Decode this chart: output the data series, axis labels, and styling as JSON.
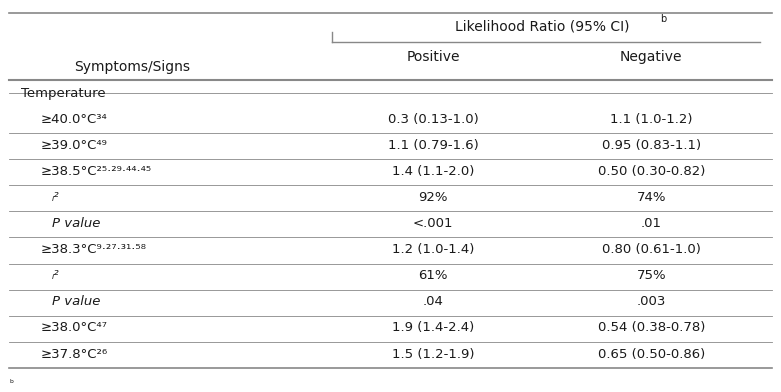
{
  "title": "Likelihood Ratio (95% CI)ᵇ",
  "col_headers": [
    "Symptoms/Signs",
    "Positive",
    "Negative"
  ],
  "rows": [
    {
      "label": "Temperature",
      "positive": "",
      "negative": "",
      "indent": 0,
      "bold": false,
      "italic": false,
      "divider_above": true
    },
    {
      "label": "≥40.0°C³⁴",
      "positive": "0.3 (0.13-1.0)",
      "negative": "1.1 (1.0-1.2)",
      "indent": 1,
      "bold": false,
      "italic": false,
      "divider_above": false
    },
    {
      "label": "≥39.0°C⁴⁹",
      "positive": "1.1 (0.79-1.6)",
      "negative": "0.95 (0.83-1.1)",
      "indent": 1,
      "bold": false,
      "italic": false,
      "divider_above": true
    },
    {
      "label": "≥38.5°C²⁵‧²⁹‧⁴⁴‧⁴⁵",
      "positive": "1.4 (1.1-2.0)",
      "negative": "0.50 (0.30-0.82)",
      "indent": 1,
      "bold": false,
      "italic": false,
      "divider_above": true
    },
    {
      "label": "    ᵢ²",
      "positive": "92%",
      "negative": "74%",
      "indent": 2,
      "bold": false,
      "italic": true,
      "divider_above": true
    },
    {
      "label": "    P value",
      "positive": "<.001",
      "negative": ".01",
      "indent": 2,
      "bold": false,
      "italic": true,
      "divider_above": true
    },
    {
      "label": "≥38.3°C⁹‧²⁷‧³¹‧⁵⁸",
      "positive": "1.2 (1.0-1.4)",
      "negative": "0.80 (0.61-1.0)",
      "indent": 1,
      "bold": false,
      "italic": false,
      "divider_above": true
    },
    {
      "label": "    ᵢ²",
      "positive": "61%",
      "negative": "75%",
      "indent": 2,
      "bold": false,
      "italic": true,
      "divider_above": true
    },
    {
      "label": "    P value",
      "positive": ".04",
      "negative": ".003",
      "indent": 2,
      "bold": false,
      "italic": true,
      "divider_above": true
    },
    {
      "label": "≥38.0°C⁴⁷",
      "positive": "1.9 (1.4-2.4)",
      "negative": "0.54 (0.38-0.78)",
      "indent": 1,
      "bold": false,
      "italic": false,
      "divider_above": true
    },
    {
      "label": "≥37.8°C²⁶",
      "positive": "1.5 (1.2-1.9)",
      "negative": "0.65 (0.50-0.86)",
      "indent": 1,
      "bold": false,
      "italic": false,
      "divider_above": true
    }
  ],
  "bg_color": "#ffffff",
  "text_color": "#1a1a1a",
  "line_color": "#888888",
  "fontsize": 9.5,
  "header_fontsize": 10
}
